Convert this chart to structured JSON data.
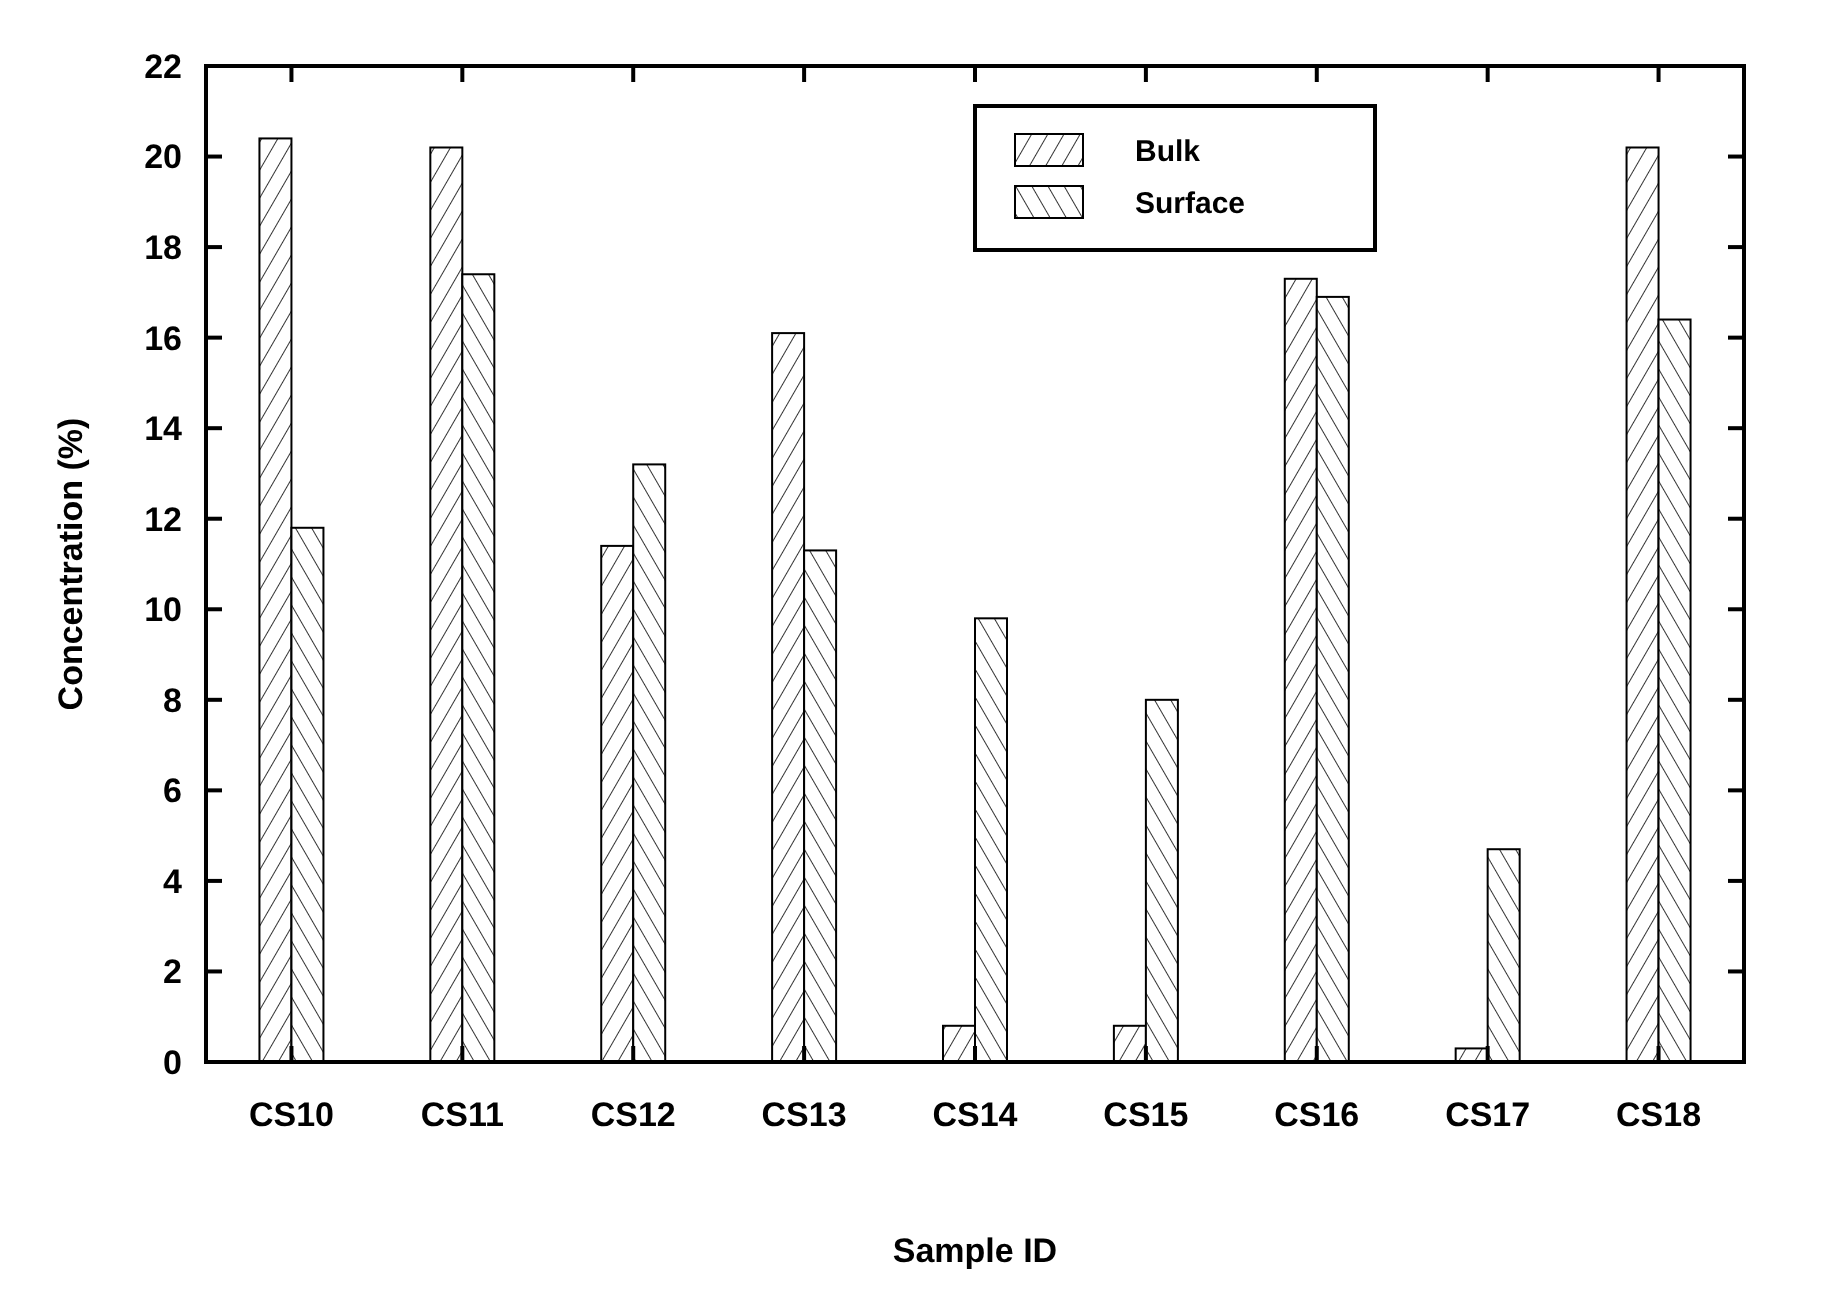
{
  "chart_data": {
    "type": "bar",
    "xlabel": "Sample ID",
    "ylabel": "Concentration (%)",
    "categories": [
      "CS10",
      "CS11",
      "CS12",
      "CS13",
      "CS14",
      "CS15",
      "CS16",
      "CS17",
      "CS18"
    ],
    "series": [
      {
        "name": "Bulk",
        "color": "#000000",
        "values": [
          20.4,
          20.2,
          11.4,
          16.1,
          0.8,
          0.8,
          17.3,
          0.3,
          20.2
        ]
      },
      {
        "name": "Surface",
        "color": "#000000",
        "values": [
          11.8,
          17.4,
          13.2,
          11.3,
          9.8,
          8.0,
          16.9,
          4.7,
          16.4
        ]
      }
    ],
    "ylim": [
      0,
      22
    ],
    "yticks": [
      0,
      2,
      4,
      6,
      8,
      10,
      12,
      14,
      16,
      18,
      20,
      22
    ],
    "grid": false,
    "legend": "top right"
  }
}
